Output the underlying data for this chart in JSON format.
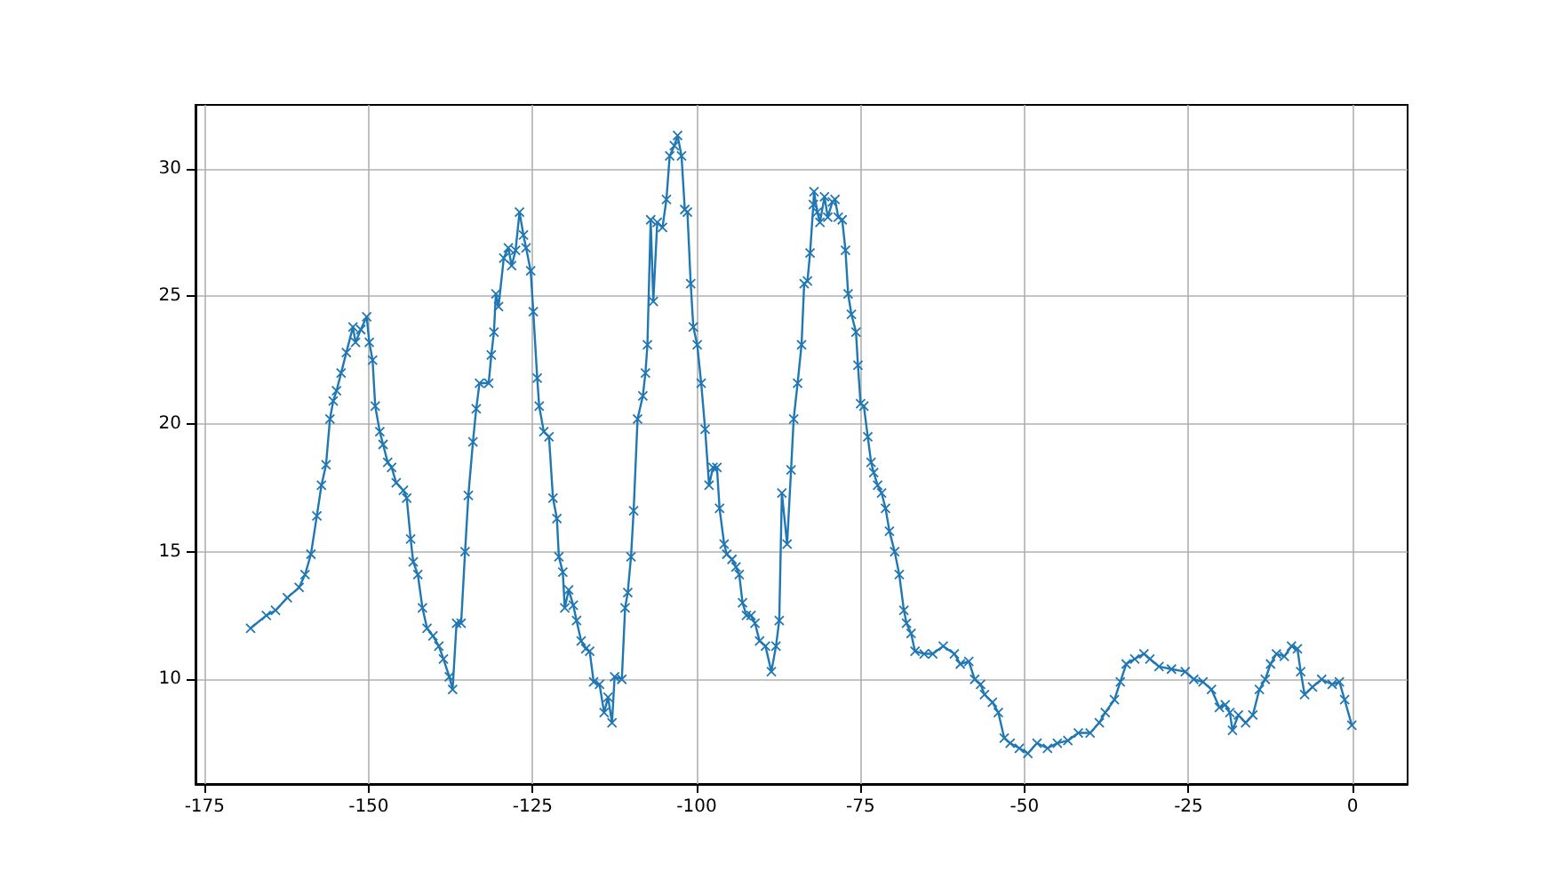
{
  "chart_data": {
    "type": "line",
    "marker": "cross",
    "line_style": "solid",
    "grid": true,
    "xlim": [
      -176.4,
      8.4
    ],
    "ylim": [
      5.9,
      32.5
    ],
    "xticks": [
      -175,
      -150,
      -125,
      -100,
      -75,
      -50,
      -25,
      0
    ],
    "yticks": [
      10,
      15,
      20,
      25,
      30
    ],
    "series": [
      {
        "color": "#1f77b4",
        "x": [
          -168,
          -165.6,
          -164.2,
          -162.4,
          -160.6,
          -159.7,
          -158.8,
          -157.9,
          -157.2,
          -156.5,
          -155.9,
          -155.4,
          -154.9,
          -154.2,
          -153.4,
          -152.4,
          -152,
          -151.2,
          -150.3,
          -149.9,
          -149.4,
          -149,
          -148.3,
          -147.8,
          -147.1,
          -146.5,
          -145.8,
          -144.7,
          -144.2,
          -143.6,
          -143.2,
          -142.5,
          -141.8,
          -141.1,
          -140.2,
          -139.3,
          -138.6,
          -137.7,
          -137.2,
          -136.6,
          -135.9,
          -135.3,
          -134.8,
          -134.1,
          -133.6,
          -133.1,
          -131.7,
          -131.3,
          -130.9,
          -130.6,
          -130.2,
          -129.4,
          -128.7,
          -128.2,
          -127.6,
          -127,
          -126.4,
          -126,
          -125.3,
          -124.9,
          -124.3,
          -124,
          -123.3,
          -122.5,
          -121.9,
          -121.3,
          -121,
          -120.4,
          -120.1,
          -119.5,
          -118.8,
          -118.3,
          -117.6,
          -116.9,
          -116.3,
          -115.7,
          -114.8,
          -114.1,
          -113.5,
          -112.9,
          -112.5,
          -111.4,
          -110.9,
          -110.5,
          -110,
          -109.6,
          -109,
          -108.2,
          -107.8,
          -107.5,
          -107,
          -106.6,
          -106,
          -105.2,
          -104.6,
          -104.1,
          -103.4,
          -102.9,
          -102.3,
          -101.8,
          -101.4,
          -100.9,
          -100.5,
          -99.9,
          -99.3,
          -98.7,
          -98.1,
          -97.5,
          -96.9,
          -96.5,
          -95.8,
          -95.4,
          -94.6,
          -94,
          -93.5,
          -93,
          -92.4,
          -91.7,
          -91.1,
          -90.4,
          -89.5,
          -88.6,
          -87.9,
          -87.4,
          -87,
          -86.2,
          -85.6,
          -85.2,
          -84.6,
          -84,
          -83.6,
          -83.1,
          -82.7,
          -82.2,
          -82.1,
          -81.6,
          -81.2,
          -80.5,
          -80,
          -79.3,
          -78.9,
          -78.4,
          -77.8,
          -77.3,
          -76.9,
          -76.4,
          -75.7,
          -75.4,
          -75,
          -74.5,
          -73.9,
          -73.4,
          -73,
          -72.4,
          -71.8,
          -71.2,
          -70.6,
          -69.8,
          -69.1,
          -68.4,
          -68,
          -67.3,
          -66.7,
          -65.3,
          -64,
          -62.4,
          -60.7,
          -59.8,
          -58.5,
          -57.6,
          -56.7,
          -56.1,
          -54.9,
          -54,
          -53.1,
          -52.2,
          -50.8,
          -49.5,
          -48.1,
          -46.5,
          -45,
          -43.4,
          -41.8,
          -40,
          -38.6,
          -37.7,
          -36.3,
          -35.4,
          -34.5,
          -33.2,
          -31.8,
          -30.9,
          -29.5,
          -27.6,
          -25.5,
          -24.2,
          -22.8,
          -21.5,
          -20.3,
          -19.4,
          -18.7,
          -18.3,
          -17.4,
          -16.3,
          -15.2,
          -14.2,
          -13.3,
          -12.5,
          -11.6,
          -10.4,
          -9.3,
          -8.4,
          -7.9,
          -7.3,
          -6.1,
          -4.7,
          -3.1,
          -2,
          -1.2,
          -0.1
        ],
        "values": [
          12.0,
          12.5,
          12.7,
          13.2,
          13.6,
          14.1,
          14.9,
          16.4,
          17.6,
          18.4,
          20.2,
          20.9,
          21.3,
          22.0,
          22.8,
          23.8,
          23.2,
          23.7,
          24.2,
          23.2,
          22.5,
          20.7,
          19.7,
          19.2,
          18.5,
          18.3,
          17.7,
          17.4,
          17.1,
          15.5,
          14.6,
          14.1,
          12.8,
          12.0,
          11.7,
          11.3,
          10.8,
          10.1,
          9.6,
          12.2,
          12.2,
          15.0,
          17.2,
          19.3,
          20.6,
          21.6,
          21.6,
          22.7,
          23.6,
          25.1,
          24.6,
          26.5,
          26.9,
          26.2,
          26.8,
          28.3,
          27.4,
          26.9,
          26.0,
          24.4,
          21.8,
          20.7,
          19.7,
          19.5,
          17.1,
          16.3,
          14.8,
          14.2,
          12.8,
          13.5,
          12.9,
          12.3,
          11.5,
          11.2,
          11.1,
          9.9,
          9.8,
          8.7,
          9.3,
          8.3,
          10.1,
          10.0,
          12.8,
          13.4,
          14.8,
          16.6,
          20.2,
          21.1,
          22.0,
          23.1,
          28.0,
          24.8,
          27.9,
          27.7,
          28.8,
          30.5,
          30.9,
          31.3,
          30.5,
          28.4,
          28.3,
          25.5,
          23.8,
          23.1,
          21.6,
          19.8,
          17.6,
          18.3,
          18.3,
          16.7,
          15.3,
          14.9,
          14.7,
          14.4,
          14.1,
          13.0,
          12.5,
          12.5,
          12.2,
          11.5,
          11.3,
          10.3,
          11.3,
          12.3,
          17.3,
          15.3,
          18.2,
          20.2,
          21.6,
          23.1,
          25.5,
          25.6,
          26.7,
          28.6,
          29.1,
          28.3,
          27.9,
          28.9,
          28.1,
          28.7,
          28.8,
          28.1,
          28.0,
          26.8,
          25.1,
          24.3,
          23.6,
          22.3,
          20.8,
          20.7,
          19.5,
          18.5,
          18.1,
          17.6,
          17.3,
          16.7,
          15.8,
          15.0,
          14.1,
          12.7,
          12.2,
          11.8,
          11.1,
          11.0,
          11.0,
          11.3,
          11.0,
          10.6,
          10.7,
          10.0,
          9.8,
          9.4,
          9.1,
          8.7,
          7.7,
          7.5,
          7.3,
          7.1,
          7.5,
          7.3,
          7.5,
          7.6,
          7.9,
          7.9,
          8.3,
          8.7,
          9.2,
          9.9,
          10.6,
          10.8,
          11.0,
          10.8,
          10.5,
          10.4,
          10.3,
          10.0,
          9.9,
          9.6,
          8.9,
          9.0,
          8.7,
          8.0,
          8.6,
          8.3,
          8.6,
          9.6,
          10.0,
          10.6,
          11.0,
          10.9,
          11.3,
          11.2,
          10.3,
          9.4,
          9.7,
          10.0,
          9.8,
          9.9,
          9.2,
          8.2
        ]
      }
    ]
  }
}
